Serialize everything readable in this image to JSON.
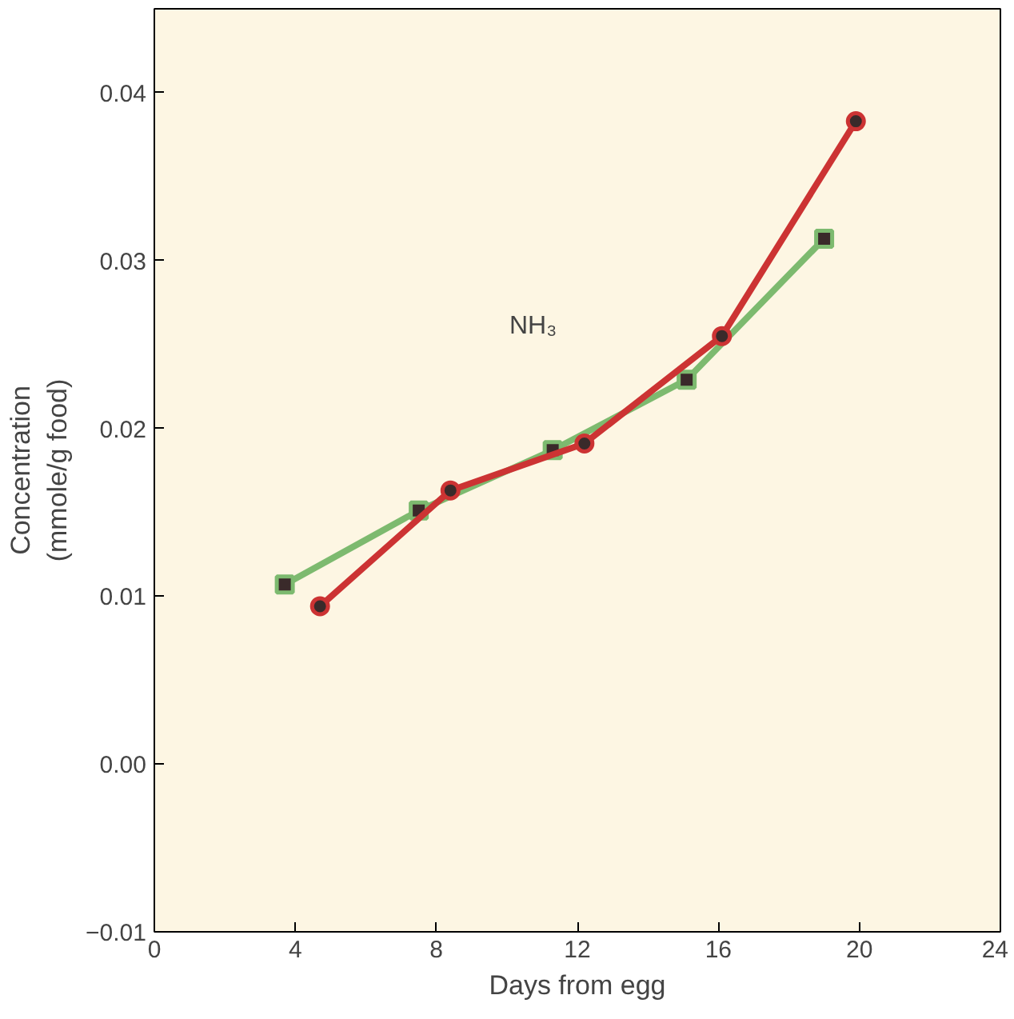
{
  "chart_data": {
    "type": "line",
    "xlabel": "Days from egg",
    "ylabel": "Concentration\n(mmole/g food)",
    "xlim": [
      0,
      24
    ],
    "xticks": [
      0,
      4,
      8,
      12,
      16,
      20,
      24
    ],
    "ylim": [
      -0.01,
      0.045
    ],
    "yticks": [
      {
        "value": -0.01,
        "label": "−0.01"
      },
      {
        "value": 0,
        "label": "0.00"
      },
      {
        "value": 0.01,
        "label": "0.01"
      },
      {
        "value": 0.02,
        "label": "0.02"
      },
      {
        "value": 0.03,
        "label": "0.03"
      },
      {
        "value": 0.04,
        "label": "0.04"
      }
    ],
    "series": [
      {
        "color": "#7dba6f",
        "marker": "square",
        "x": [
          3.7,
          7.5,
          11.3,
          15.1,
          19.0
        ],
        "values": [
          0.0107,
          0.0151,
          0.0187,
          0.0229,
          0.0313
        ]
      },
      {
        "color": "#cc3333",
        "marker": "circle",
        "x": [
          4.7,
          8.4,
          12.2,
          16.1,
          19.9
        ],
        "values": [
          0.0094,
          0.0163,
          0.0191,
          0.0255,
          0.0383
        ]
      }
    ],
    "annotations": [
      "NH₃"
    ],
    "grid": false
  }
}
